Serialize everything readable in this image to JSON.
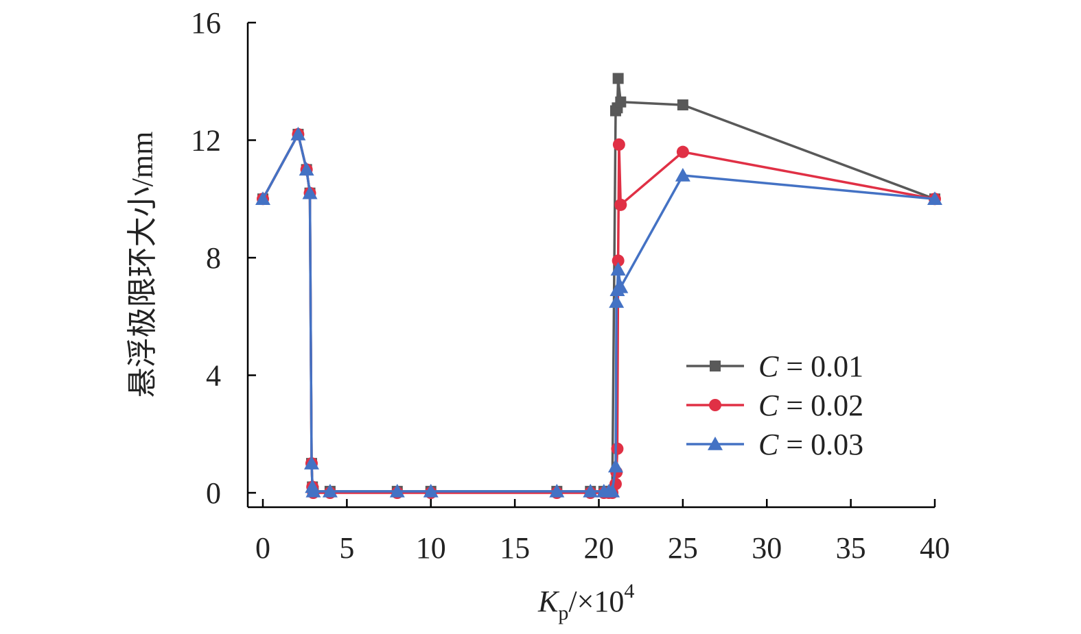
{
  "chart_data": {
    "type": "line",
    "xlabel": {
      "main": "K",
      "sub": "p",
      "rest": "/×10",
      "sup": "4"
    },
    "ylabel": "悬浮极限环大小/mm",
    "xlim": [
      -1,
      40
    ],
    "ylim": [
      -0.5,
      16
    ],
    "xticks": [
      0,
      5,
      10,
      15,
      20,
      25,
      30,
      35,
      40
    ],
    "yticks": [
      0,
      4,
      8,
      12,
      16
    ],
    "legend_position": "center-right",
    "series": [
      {
        "name": "C = 0.01",
        "var": "C",
        "value_text": " = 0.01",
        "color": "#595959",
        "marker": "square",
        "points": [
          [
            0,
            10
          ],
          [
            2.1,
            12.2
          ],
          [
            2.6,
            11.0
          ],
          [
            2.8,
            10.2
          ],
          [
            2.9,
            1.0
          ],
          [
            2.95,
            0.2
          ],
          [
            3.0,
            0.05
          ],
          [
            4,
            0.05
          ],
          [
            8,
            0.05
          ],
          [
            10,
            0.05
          ],
          [
            17.5,
            0.05
          ],
          [
            19.5,
            0.05
          ],
          [
            20.3,
            0.05
          ],
          [
            20.6,
            0.05
          ],
          [
            20.8,
            0.05
          ],
          [
            21.0,
            13.0
          ],
          [
            21.1,
            13.1
          ],
          [
            21.15,
            14.1
          ],
          [
            21.3,
            13.3
          ],
          [
            25,
            13.2
          ],
          [
            40,
            10
          ]
        ]
      },
      {
        "name": "C = 0.02",
        "var": "C",
        "value_text": " = 0.02",
        "color": "#E03045",
        "marker": "circle",
        "points": [
          [
            0,
            10
          ],
          [
            2.1,
            12.2
          ],
          [
            2.6,
            11.0
          ],
          [
            2.8,
            10.2
          ],
          [
            2.9,
            1.0
          ],
          [
            2.95,
            0.2
          ],
          [
            3.0,
            0.0
          ],
          [
            4,
            0.0
          ],
          [
            8,
            0.0
          ],
          [
            10,
            0.0
          ],
          [
            17.5,
            0.0
          ],
          [
            19.5,
            0.0
          ],
          [
            20.3,
            0.0
          ],
          [
            20.6,
            0.0
          ],
          [
            20.8,
            0.0
          ],
          [
            21.0,
            0.3
          ],
          [
            21.05,
            0.7
          ],
          [
            21.1,
            1.5
          ],
          [
            21.15,
            7.9
          ],
          [
            21.2,
            11.85
          ],
          [
            21.3,
            9.8
          ],
          [
            25,
            11.6
          ],
          [
            40,
            10
          ]
        ]
      },
      {
        "name": "C = 0.03",
        "var": "C",
        "value_text": " = 0.03",
        "color": "#4472C4",
        "marker": "triangle",
        "points": [
          [
            0,
            10
          ],
          [
            2.1,
            12.2
          ],
          [
            2.6,
            11.0
          ],
          [
            2.8,
            10.2
          ],
          [
            2.9,
            1.0
          ],
          [
            2.95,
            0.2
          ],
          [
            3.0,
            0.05
          ],
          [
            4,
            0.05
          ],
          [
            8,
            0.05
          ],
          [
            10,
            0.05
          ],
          [
            17.5,
            0.05
          ],
          [
            19.5,
            0.05
          ],
          [
            20.3,
            0.05
          ],
          [
            20.6,
            0.05
          ],
          [
            20.8,
            0.05
          ],
          [
            21.0,
            0.9
          ],
          [
            21.05,
            6.5
          ],
          [
            21.1,
            6.9
          ],
          [
            21.15,
            7.6
          ],
          [
            21.3,
            7.0
          ],
          [
            25,
            10.8
          ],
          [
            40,
            10
          ]
        ]
      }
    ]
  }
}
